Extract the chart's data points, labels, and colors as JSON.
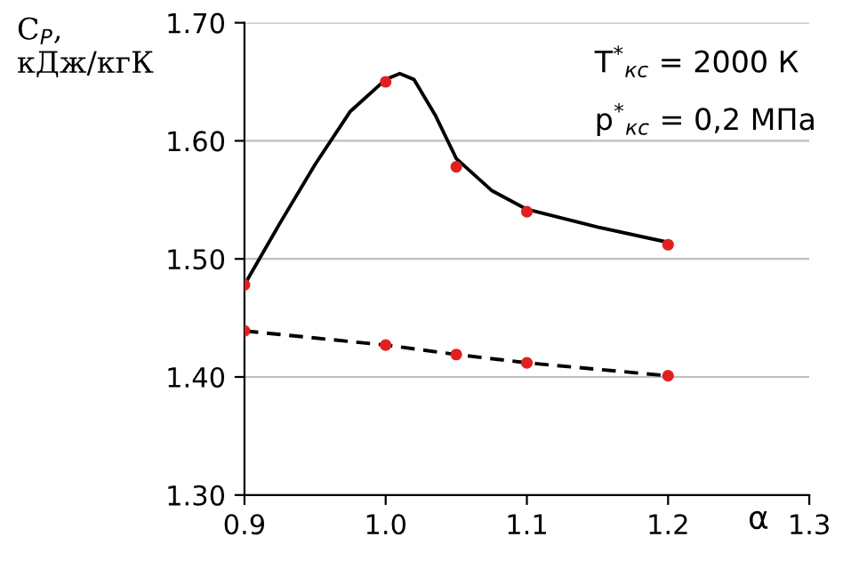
{
  "chart_data": {
    "type": "line",
    "ylabel": "C$_{P}$,\nкДж/кгК",
    "xlabel": "α",
    "xlim": [
      0.9,
      1.3
    ],
    "xticks": [
      {
        "value": 0.9,
        "label": "0.9"
      },
      {
        "value": 1.0,
        "label": "1.0"
      },
      {
        "value": 1.1,
        "label": "1.1"
      },
      {
        "value": 1.2,
        "label": "1.2"
      },
      {
        "value": 1.3,
        "label": "1.3"
      }
    ],
    "ylim": [
      1.3,
      1.7
    ],
    "yticks": [
      {
        "value": 1.3,
        "label": "1.30"
      },
      {
        "value": 1.4,
        "label": "1.40"
      },
      {
        "value": 1.5,
        "label": "1.50"
      },
      {
        "value": 1.6,
        "label": "1.60"
      },
      {
        "value": 1.7,
        "label": "1.70"
      }
    ],
    "grid": "y",
    "marker": "none",
    "annotations": [
      "T$^{*}$$_{кс}$ = 2000 К",
      "p$^{*}$$_{кс}$ = 0,2 МПа"
    ],
    "series": [
      {
        "color": "#000000",
        "line_style": "solid",
        "x": [
          0.9,
          0.925,
          0.95,
          0.975,
          1.0,
          1.01,
          1.02,
          1.035,
          1.05,
          1.075,
          1.1,
          1.15,
          1.2
        ],
        "values": [
          1.478,
          1.53,
          1.58,
          1.625,
          1.652,
          1.657,
          1.652,
          1.622,
          1.585,
          1.558,
          1.542,
          1.527,
          1.514
        ]
      },
      {
        "color": "#000000",
        "line_style": "dashed",
        "x": [
          0.9,
          1.0,
          1.05,
          1.1,
          1.2
        ],
        "values": [
          1.439,
          1.427,
          1.419,
          1.412,
          1.401
        ]
      },
      {
        "type": "scatter",
        "color": "#e02020",
        "marker": "circle",
        "x": [
          0.9,
          1.0,
          1.05,
          1.1,
          1.2
        ],
        "values": [
          1.478,
          1.65,
          1.578,
          1.54,
          1.512
        ]
      },
      {
        "type": "scatter",
        "color": "#e02020",
        "marker": "circle",
        "x": [
          0.9,
          1.0,
          1.05,
          1.1,
          1.2
        ],
        "values": [
          1.439,
          1.427,
          1.419,
          1.412,
          1.401
        ]
      }
    ]
  }
}
